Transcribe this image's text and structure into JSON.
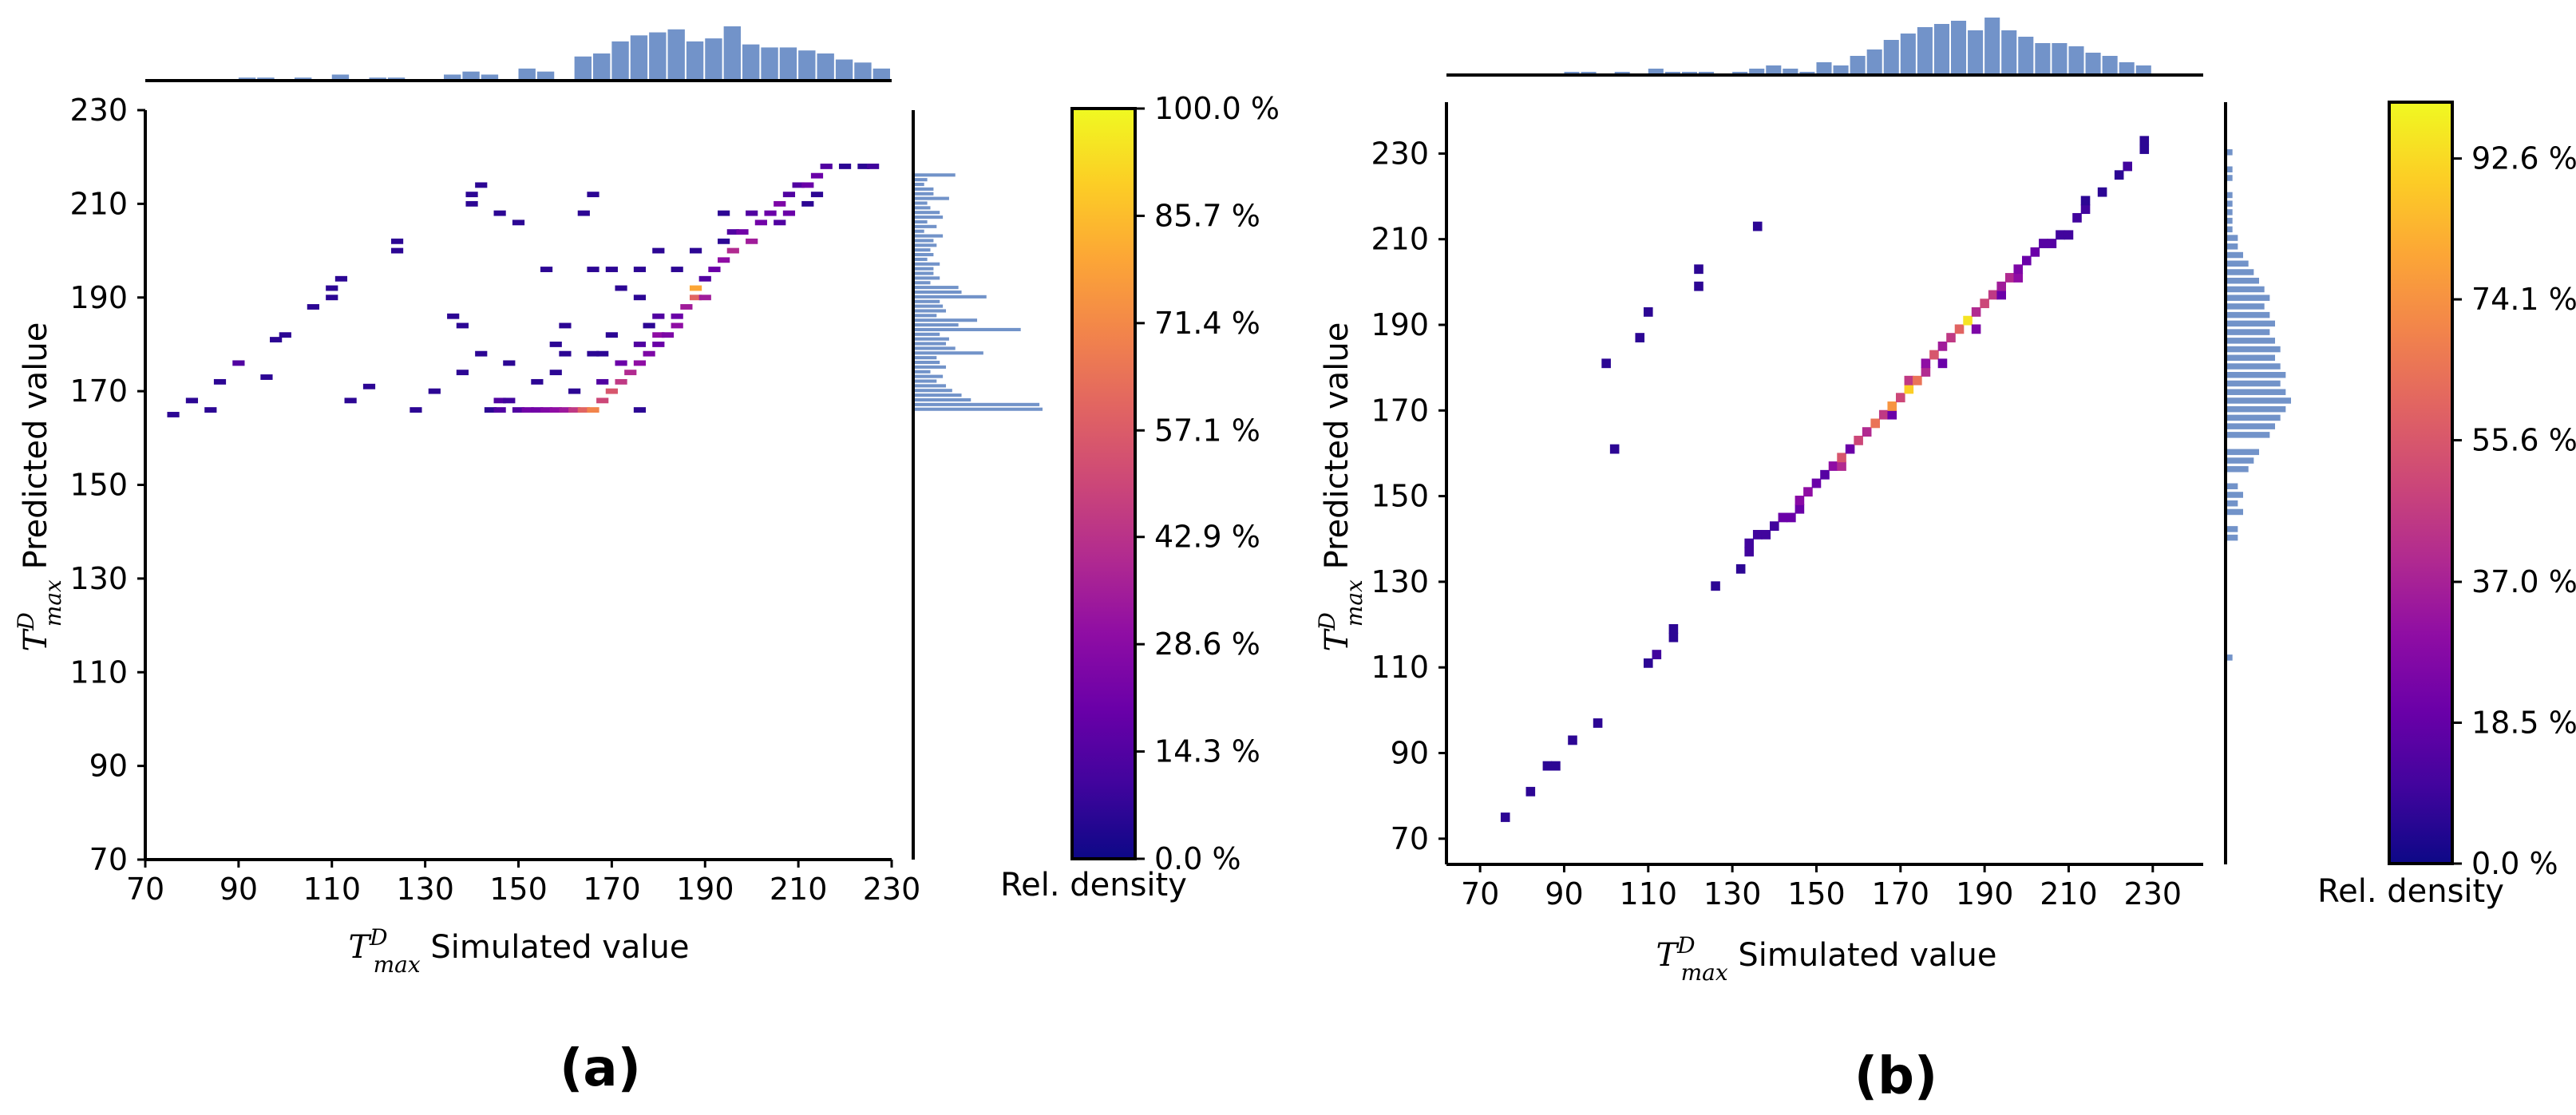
{
  "chart_data": [
    {
      "type": "heatmap",
      "panel_label": "(a)",
      "xlabel": {
        "math": "T",
        "sup": "D",
        "sub": "max",
        "text": " Simulated value"
      },
      "ylabel": {
        "math": "T",
        "sup": "D",
        "sub": "max",
        "text": " Predicted value"
      },
      "xlim": [
        70,
        230
      ],
      "ylim": [
        70,
        230
      ],
      "xticks": [
        "70",
        "90",
        "110",
        "130",
        "150",
        "170",
        "190",
        "210",
        "230"
      ],
      "yticks": [
        "70",
        "90",
        "110",
        "130",
        "150",
        "170",
        "190",
        "210",
        "230"
      ],
      "bin_width": 2.6,
      "cells": [
        [
          76,
          165,
          6
        ],
        [
          80,
          168,
          6
        ],
        [
          84,
          166,
          6
        ],
        [
          86,
          172,
          6
        ],
        [
          90,
          176,
          14
        ],
        [
          96,
          173,
          6
        ],
        [
          98,
          181,
          6
        ],
        [
          100,
          182,
          6
        ],
        [
          106,
          188,
          6
        ],
        [
          110,
          190,
          6
        ],
        [
          110,
          192,
          6
        ],
        [
          112,
          194,
          6
        ],
        [
          114,
          168,
          6
        ],
        [
          118,
          171,
          6
        ],
        [
          124,
          202,
          6
        ],
        [
          124,
          200,
          6
        ],
        [
          128,
          166,
          6
        ],
        [
          138,
          184,
          6
        ],
        [
          138,
          174,
          6
        ],
        [
          140,
          212,
          6
        ],
        [
          140,
          210,
          6
        ],
        [
          142,
          214,
          6
        ],
        [
          144,
          166,
          6
        ],
        [
          146,
          208,
          6
        ],
        [
          146,
          168,
          14
        ],
        [
          148,
          168,
          10
        ],
        [
          146,
          166,
          14
        ],
        [
          150,
          166,
          14
        ],
        [
          152,
          166,
          22
        ],
        [
          154,
          166,
          22
        ],
        [
          156,
          166,
          26
        ],
        [
          158,
          166,
          30
        ],
        [
          160,
          166,
          34
        ],
        [
          162,
          166,
          45
        ],
        [
          164,
          166,
          60
        ],
        [
          166,
          166,
          70
        ],
        [
          158,
          174,
          6
        ],
        [
          158,
          180,
          6
        ],
        [
          160,
          184,
          6
        ],
        [
          162,
          170,
          6
        ],
        [
          160,
          178,
          6
        ],
        [
          164,
          208,
          6
        ],
        [
          166,
          212,
          6
        ],
        [
          166,
          196,
          6
        ],
        [
          168,
          172,
          14
        ],
        [
          168,
          168,
          50
        ],
        [
          170,
          170,
          55
        ],
        [
          172,
          172,
          45
        ],
        [
          172,
          176,
          20
        ],
        [
          174,
          174,
          40
        ],
        [
          176,
          176,
          30
        ],
        [
          176,
          180,
          14
        ],
        [
          178,
          178,
          25
        ],
        [
          180,
          180,
          20
        ],
        [
          180,
          182,
          30
        ],
        [
          180,
          186,
          14
        ],
        [
          182,
          182,
          25
        ],
        [
          184,
          184,
          30
        ],
        [
          184,
          186,
          20
        ],
        [
          186,
          188,
          35
        ],
        [
          188,
          190,
          60
        ],
        [
          188,
          192,
          80
        ],
        [
          190,
          190,
          35
        ],
        [
          190,
          194,
          14
        ],
        [
          172,
          192,
          6
        ],
        [
          176,
          190,
          6
        ],
        [
          178,
          184,
          6
        ],
        [
          180,
          200,
          6
        ],
        [
          170,
          196,
          6
        ],
        [
          176,
          196,
          6
        ],
        [
          192,
          196,
          20
        ],
        [
          194,
          198,
          30
        ],
        [
          196,
          200,
          40
        ],
        [
          196,
          204,
          14
        ],
        [
          198,
          204,
          22
        ],
        [
          200,
          202,
          35
        ],
        [
          202,
          206,
          22
        ],
        [
          200,
          208,
          14
        ],
        [
          204,
          208,
          20
        ],
        [
          206,
          206,
          14
        ],
        [
          206,
          210,
          25
        ],
        [
          208,
          212,
          14
        ],
        [
          208,
          208,
          20
        ],
        [
          210,
          214,
          14
        ],
        [
          212,
          214,
          20
        ],
        [
          214,
          216,
          20
        ],
        [
          212,
          210,
          6
        ],
        [
          216,
          218,
          14
        ],
        [
          220,
          218,
          6
        ],
        [
          224,
          218,
          6
        ],
        [
          226,
          218,
          10
        ],
        [
          214,
          212,
          6
        ],
        [
          194,
          202,
          6
        ],
        [
          194,
          208,
          6
        ],
        [
          188,
          200,
          6
        ],
        [
          184,
          196,
          6
        ],
        [
          150,
          206,
          6
        ],
        [
          156,
          196,
          6
        ],
        [
          166,
          178,
          6
        ],
        [
          154,
          172,
          6
        ],
        [
          148,
          176,
          6
        ],
        [
          170,
          182,
          6
        ],
        [
          176,
          166,
          6
        ],
        [
          142,
          178,
          6
        ],
        [
          136,
          186,
          6
        ],
        [
          132,
          170,
          6
        ],
        [
          168,
          178,
          6
        ]
      ],
      "top_histogram": {
        "bins": [
          92,
          96,
          100,
          104,
          108,
          112,
          116,
          120,
          124,
          128,
          132,
          136,
          140,
          144,
          148,
          152,
          156,
          160,
          164,
          168,
          172,
          176,
          180,
          184,
          188,
          192,
          196,
          200,
          204,
          208,
          212,
          216,
          220,
          224,
          228
        ],
        "counts": [
          1,
          1,
          0,
          1,
          0,
          2,
          0,
          1,
          1,
          0,
          0,
          2,
          3,
          2,
          0,
          4,
          3,
          0,
          8,
          9,
          13,
          15,
          16,
          17,
          13,
          14,
          18,
          12,
          11,
          11,
          10,
          9,
          7,
          6,
          4
        ]
      },
      "right_histogram": {
        "bins": [
          166,
          167,
          168,
          169,
          170,
          171,
          172,
          173,
          174,
          175,
          176,
          177,
          178,
          179,
          180,
          181,
          182,
          183,
          184,
          185,
          186,
          187,
          188,
          189,
          190,
          191,
          192,
          193,
          194,
          195,
          196,
          197,
          198,
          199,
          200,
          201,
          202,
          203,
          204,
          205,
          206,
          207,
          208,
          209,
          210,
          211,
          212,
          213,
          214,
          215,
          216
        ],
        "counts": [
          41,
          40,
          18,
          15,
          12,
          10,
          7,
          9,
          5,
          10,
          8,
          7,
          22,
          13,
          10,
          11,
          8,
          34,
          14,
          20,
          7,
          10,
          9,
          8,
          23,
          15,
          14,
          5,
          8,
          6,
          6,
          8,
          4,
          6,
          5,
          7,
          6,
          9,
          3,
          7,
          4,
          9,
          8,
          5,
          4,
          11,
          6,
          6,
          3,
          4,
          13
        ]
      },
      "colorbar": {
        "ticks": [
          "0.0 %",
          "14.3 %",
          "28.6 %",
          "42.9 %",
          "57.1 %",
          "71.4 %",
          "85.7 %",
          "100.0 %"
        ],
        "max": 100,
        "label": "Rel. density"
      }
    },
    {
      "type": "heatmap",
      "panel_label": "(b)",
      "xlabel": {
        "math": "T",
        "sup": "D",
        "sub": "max",
        "text": " Simulated value"
      },
      "ylabel": {
        "math": "T",
        "sup": "D",
        "sub": "max",
        "text": " Predicted value"
      },
      "xlim": [
        62,
        242
      ],
      "ylim": [
        64,
        242
      ],
      "xticks": [
        "70",
        "90",
        "110",
        "130",
        "150",
        "170",
        "190",
        "210",
        "230"
      ],
      "yticks": [
        "70",
        "90",
        "110",
        "130",
        "150",
        "170",
        "190",
        "210",
        "230"
      ],
      "bin_width": 2.2,
      "cells": [
        [
          76,
          75,
          6
        ],
        [
          82,
          81,
          6
        ],
        [
          86,
          87,
          6
        ],
        [
          88,
          87,
          6
        ],
        [
          92,
          93,
          6
        ],
        [
          98,
          97,
          6
        ],
        [
          100,
          181,
          6
        ],
        [
          102,
          161,
          6
        ],
        [
          108,
          187,
          6
        ],
        [
          110,
          193,
          6
        ],
        [
          110,
          111,
          6
        ],
        [
          112,
          113,
          10
        ],
        [
          116,
          117,
          6
        ],
        [
          116,
          119,
          6
        ],
        [
          122,
          199,
          6
        ],
        [
          122,
          203,
          6
        ],
        [
          126,
          129,
          6
        ],
        [
          132,
          133,
          6
        ],
        [
          134,
          137,
          10
        ],
        [
          134,
          139,
          10
        ],
        [
          136,
          213,
          6
        ],
        [
          136,
          141,
          10
        ],
        [
          138,
          141,
          10
        ],
        [
          140,
          143,
          10
        ],
        [
          142,
          145,
          20
        ],
        [
          144,
          145,
          20
        ],
        [
          146,
          147,
          20
        ],
        [
          146,
          149,
          28
        ],
        [
          148,
          151,
          30
        ],
        [
          150,
          153,
          20
        ],
        [
          152,
          155,
          15
        ],
        [
          154,
          157,
          30
        ],
        [
          156,
          157,
          40
        ],
        [
          156,
          159,
          55
        ],
        [
          158,
          161,
          20
        ],
        [
          160,
          163,
          50
        ],
        [
          162,
          165,
          40
        ],
        [
          164,
          167,
          65
        ],
        [
          166,
          169,
          45
        ],
        [
          168,
          169,
          20
        ],
        [
          168,
          171,
          75
        ],
        [
          170,
          173,
          50
        ],
        [
          172,
          175,
          90
        ],
        [
          172,
          177,
          45
        ],
        [
          174,
          177,
          65
        ],
        [
          176,
          179,
          40
        ],
        [
          176,
          181,
          30
        ],
        [
          178,
          183,
          55
        ],
        [
          180,
          181,
          20
        ],
        [
          180,
          185,
          35
        ],
        [
          182,
          187,
          45
        ],
        [
          184,
          189,
          60
        ],
        [
          186,
          191,
          95
        ],
        [
          188,
          189,
          25
        ],
        [
          188,
          193,
          40
        ],
        [
          190,
          195,
          50
        ],
        [
          192,
          197,
          45
        ],
        [
          194,
          197,
          20
        ],
        [
          194,
          199,
          35
        ],
        [
          196,
          201,
          40
        ],
        [
          198,
          201,
          30
        ],
        [
          198,
          203,
          25
        ],
        [
          200,
          205,
          20
        ],
        [
          202,
          207,
          20
        ],
        [
          204,
          209,
          15
        ],
        [
          206,
          209,
          15
        ],
        [
          208,
          211,
          10
        ],
        [
          210,
          211,
          10
        ],
        [
          212,
          215,
          10
        ],
        [
          214,
          217,
          10
        ],
        [
          214,
          219,
          6
        ],
        [
          218,
          221,
          6
        ],
        [
          222,
          225,
          6
        ],
        [
          224,
          227,
          10
        ],
        [
          228,
          231,
          6
        ],
        [
          228,
          233,
          6
        ]
      ],
      "top_histogram": {
        "bins": [
          92,
          96,
          100,
          104,
          108,
          112,
          116,
          120,
          124,
          128,
          132,
          136,
          140,
          144,
          148,
          152,
          156,
          160,
          164,
          168,
          172,
          176,
          180,
          184,
          188,
          192,
          196,
          200,
          204,
          208,
          212,
          216,
          220,
          224,
          228
        ],
        "counts": [
          1,
          1,
          0,
          1,
          0,
          2,
          1,
          1,
          1,
          0,
          1,
          2,
          3,
          2,
          1,
          4,
          3,
          6,
          8,
          11,
          13,
          15,
          16,
          17,
          14,
          18,
          14,
          12,
          10,
          10,
          9,
          7,
          6,
          4,
          3
        ]
      },
      "right_histogram": {
        "bins": [
          112,
          140,
          142,
          146,
          148,
          150,
          152,
          156,
          158,
          160,
          164,
          166,
          168,
          170,
          172,
          174,
          176,
          178,
          180,
          182,
          184,
          186,
          188,
          190,
          192,
          194,
          196,
          198,
          200,
          202,
          204,
          206,
          208,
          210,
          212,
          214,
          216,
          218,
          220,
          222,
          224,
          226,
          228,
          230,
          232
        ],
        "counts": [
          1,
          2,
          2,
          3,
          2,
          3,
          2,
          4,
          5,
          6,
          8,
          9,
          10,
          11,
          12,
          11,
          10,
          11,
          10,
          9,
          10,
          9,
          8,
          9,
          8,
          7,
          8,
          7,
          6,
          5,
          4,
          3,
          2,
          2,
          1,
          1,
          1,
          1,
          1,
          0,
          1,
          1,
          0,
          1,
          0
        ]
      },
      "colorbar": {
        "ticks": [
          "0.0 %",
          "18.5 %",
          "37.0 %",
          "55.6 %",
          "74.1 %",
          "92.6 %"
        ],
        "max": 100,
        "label": "Rel. density"
      }
    }
  ]
}
